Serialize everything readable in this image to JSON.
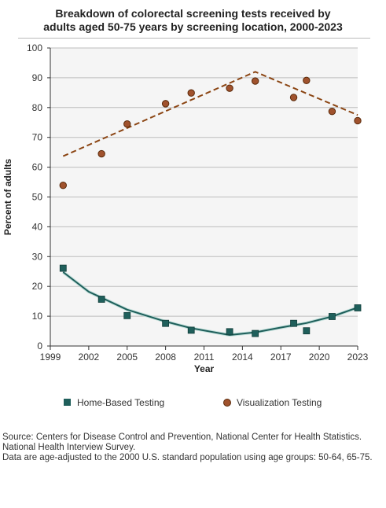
{
  "title_line1": "Breakdown of colorectal screening tests received by",
  "title_line2": "adults aged 50-75 years by screening location, 2000-2023",
  "source_line1": "Source: Centers for Disease Control and Prevention, National Center for Health Statistics. National Health Interview Survey.",
  "source_line2": "Data are age-adjusted to the 2000 U.S. standard population using age groups: 50-64, 65-75.",
  "colors": {
    "home": "#1f5f5b",
    "visual": "#8b4513",
    "visual_fill": "#a0522d",
    "grid": "#bdbdbd",
    "plot_bg": "#f5f5f5"
  },
  "chart_data": {
    "type": "scatter",
    "xlabel": "Year",
    "ylabel": "Percent of adults",
    "xlim": [
      1999,
      2023
    ],
    "ylim": [
      0,
      100
    ],
    "x_ticks": [
      1999,
      2002,
      2005,
      2008,
      2011,
      2014,
      2017,
      2020,
      2023
    ],
    "y_ticks": [
      0,
      10,
      20,
      30,
      40,
      50,
      60,
      70,
      80,
      90,
      100
    ],
    "grid": true,
    "legend_position": "bottom",
    "series": [
      {
        "name": "Home-Based Testing",
        "marker": "square",
        "x": [
          2000,
          2003,
          2005,
          2008,
          2010,
          2013,
          2015,
          2018,
          2019,
          2021,
          2023
        ],
        "y": [
          26.1,
          15.7,
          10.2,
          7.6,
          5.3,
          4.8,
          4.2,
          7.6,
          5.1,
          9.9,
          12.8
        ],
        "trend": {
          "style": "solid",
          "x": [
            2000,
            2002,
            2005,
            2008,
            2010,
            2013,
            2015,
            2017,
            2019,
            2021,
            2023
          ],
          "y": [
            24.8,
            18.2,
            12.2,
            8.2,
            6.0,
            3.7,
            4.6,
            6.2,
            7.7,
            9.9,
            12.9
          ]
        }
      },
      {
        "name": "Visualization Testing",
        "marker": "circle",
        "x": [
          2000,
          2003,
          2005,
          2008,
          2010,
          2013,
          2015,
          2018,
          2019,
          2021,
          2023
        ],
        "y": [
          53.9,
          64.5,
          74.5,
          81.3,
          84.9,
          86.5,
          88.9,
          83.4,
          89.1,
          78.7,
          75.6
        ],
        "trend": {
          "style": "dashed",
          "x": [
            2000,
            2015,
            2023
          ],
          "y": [
            63.7,
            92.0,
            77.5
          ]
        }
      }
    ]
  }
}
